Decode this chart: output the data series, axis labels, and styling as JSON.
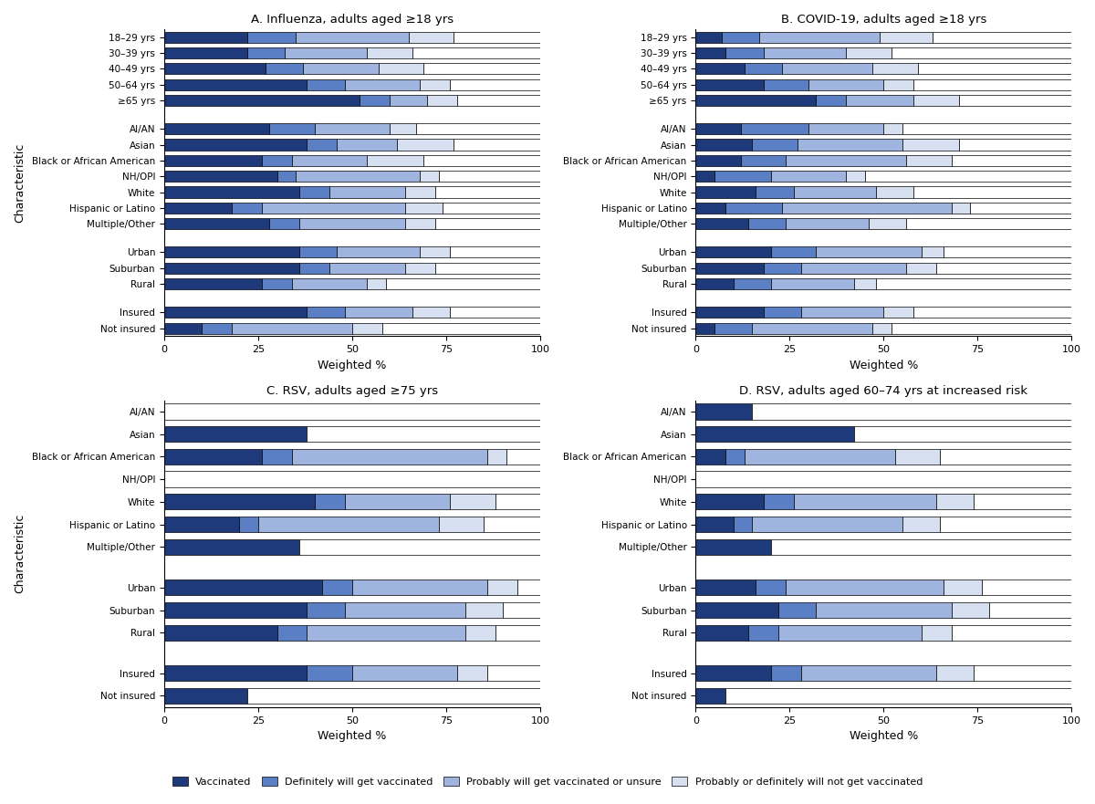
{
  "colors": {
    "vaccinated": "#1f3a7a",
    "definitely": "#5b7fc4",
    "probably_unsure": "#a0b4e0",
    "probably_not": "#d6e0f0"
  },
  "panels": [
    {
      "title": "A. Influenza, adults aged ≥18 yrs",
      "categories": [
        "18–29 yrs",
        "30–39 yrs",
        "40–49 yrs",
        "50–64 yrs",
        "≥65 yrs",
        "",
        "AI/AN",
        "Asian",
        "Black or African American",
        "NH/OPI",
        "White",
        "Hispanic or Latino",
        "Multiple/Other",
        "",
        "Urban",
        "Suburban",
        "Rural",
        "",
        "Insured",
        "Not insured"
      ],
      "data": [
        [
          22,
          13,
          30,
          12,
          23
        ],
        [
          22,
          10,
          22,
          12,
          34
        ],
        [
          27,
          10,
          20,
          12,
          31
        ],
        [
          38,
          10,
          20,
          8,
          24
        ],
        [
          52,
          8,
          10,
          8,
          22
        ],
        [
          0,
          0,
          0,
          0,
          0
        ],
        [
          28,
          12,
          20,
          7,
          33
        ],
        [
          38,
          8,
          16,
          15,
          23
        ],
        [
          26,
          8,
          20,
          15,
          31
        ],
        [
          30,
          5,
          33,
          5,
          27
        ],
        [
          36,
          8,
          20,
          8,
          28
        ],
        [
          18,
          8,
          38,
          10,
          26
        ],
        [
          28,
          8,
          28,
          8,
          28
        ],
        [
          0,
          0,
          0,
          0,
          0
        ],
        [
          36,
          10,
          22,
          8,
          24
        ],
        [
          36,
          8,
          20,
          8,
          28
        ],
        [
          26,
          8,
          20,
          5,
          41
        ],
        [
          0,
          0,
          0,
          0,
          0
        ],
        [
          38,
          10,
          18,
          10,
          24
        ],
        [
          10,
          8,
          32,
          8,
          42
        ]
      ]
    },
    {
      "title": "B. COVID-19, adults aged ≥18 yrs",
      "categories": [
        "18–29 yrs",
        "30–39 yrs",
        "40–49 yrs",
        "50–64 yrs",
        "≥65 yrs",
        "",
        "AI/AN",
        "Asian",
        "Black or African American",
        "NH/OPI",
        "White",
        "Hispanic or Latino",
        "Multiple/Other",
        "",
        "Urban",
        "Suburban",
        "Rural",
        "",
        "Insured",
        "Not insured"
      ],
      "data": [
        [
          7,
          10,
          32,
          14,
          37
        ],
        [
          8,
          10,
          22,
          12,
          48
        ],
        [
          13,
          10,
          24,
          12,
          41
        ],
        [
          18,
          12,
          20,
          8,
          42
        ],
        [
          32,
          8,
          18,
          12,
          30
        ],
        [
          0,
          0,
          0,
          0,
          0
        ],
        [
          12,
          18,
          20,
          5,
          45
        ],
        [
          15,
          12,
          28,
          15,
          30
        ],
        [
          12,
          12,
          32,
          12,
          32
        ],
        [
          5,
          15,
          20,
          5,
          55
        ],
        [
          16,
          10,
          22,
          10,
          42
        ],
        [
          8,
          15,
          45,
          5,
          27
        ],
        [
          14,
          10,
          22,
          10,
          44
        ],
        [
          0,
          0,
          0,
          0,
          0
        ],
        [
          20,
          12,
          28,
          6,
          34
        ],
        [
          18,
          10,
          28,
          8,
          36
        ],
        [
          10,
          10,
          22,
          6,
          52
        ],
        [
          0,
          0,
          0,
          0,
          0
        ],
        [
          18,
          10,
          22,
          8,
          42
        ],
        [
          5,
          10,
          32,
          5,
          48
        ]
      ]
    },
    {
      "title": "C. RSV, adults aged ≥75 yrs",
      "categories": [
        "AI/AN",
        "Asian",
        "Black or African American",
        "NH/OPI",
        "White",
        "Hispanic or Latino",
        "Multiple/Other",
        "",
        "Urban",
        "Suburban",
        "Rural",
        "",
        "Insured",
        "Not insured"
      ],
      "data": [
        [
          0,
          0,
          0,
          0,
          100
        ],
        [
          38,
          0,
          0,
          0,
          62
        ],
        [
          26,
          8,
          52,
          5,
          9
        ],
        [
          0,
          0,
          0,
          0,
          100
        ],
        [
          40,
          8,
          28,
          12,
          12
        ],
        [
          20,
          5,
          48,
          12,
          15
        ],
        [
          36,
          0,
          0,
          0,
          64
        ],
        [
          0,
          0,
          0,
          0,
          0
        ],
        [
          42,
          8,
          36,
          8,
          6
        ],
        [
          38,
          10,
          32,
          10,
          10
        ],
        [
          30,
          8,
          42,
          8,
          12
        ],
        [
          0,
          0,
          0,
          0,
          0
        ],
        [
          38,
          12,
          28,
          8,
          14
        ],
        [
          22,
          0,
          0,
          0,
          78
        ]
      ]
    },
    {
      "title": "D. RSV, adults aged 60–74 yrs at increased risk",
      "categories": [
        "AI/AN",
        "Asian",
        "Black or African American",
        "NH/OPI",
        "White",
        "Hispanic or Latino",
        "Multiple/Other",
        "",
        "Urban",
        "Suburban",
        "Rural",
        "",
        "Insured",
        "Not insured"
      ],
      "data": [
        [
          15,
          0,
          0,
          0,
          85
        ],
        [
          42,
          0,
          0,
          0,
          58
        ],
        [
          8,
          5,
          40,
          12,
          35
        ],
        [
          0,
          0,
          0,
          0,
          100
        ],
        [
          18,
          8,
          38,
          10,
          26
        ],
        [
          10,
          5,
          40,
          10,
          35
        ],
        [
          20,
          0,
          0,
          0,
          80
        ],
        [
          0,
          0,
          0,
          0,
          0
        ],
        [
          16,
          8,
          42,
          10,
          24
        ],
        [
          22,
          10,
          36,
          10,
          22
        ],
        [
          14,
          8,
          38,
          8,
          32
        ],
        [
          0,
          0,
          0,
          0,
          0
        ],
        [
          20,
          8,
          36,
          10,
          26
        ],
        [
          8,
          0,
          0,
          0,
          92
        ]
      ]
    }
  ],
  "legend_labels": [
    "Vaccinated",
    "Definitely will get vaccinated",
    "Probably will get vaccinated or unsure",
    "Probably or definitely will not get vaccinated"
  ]
}
